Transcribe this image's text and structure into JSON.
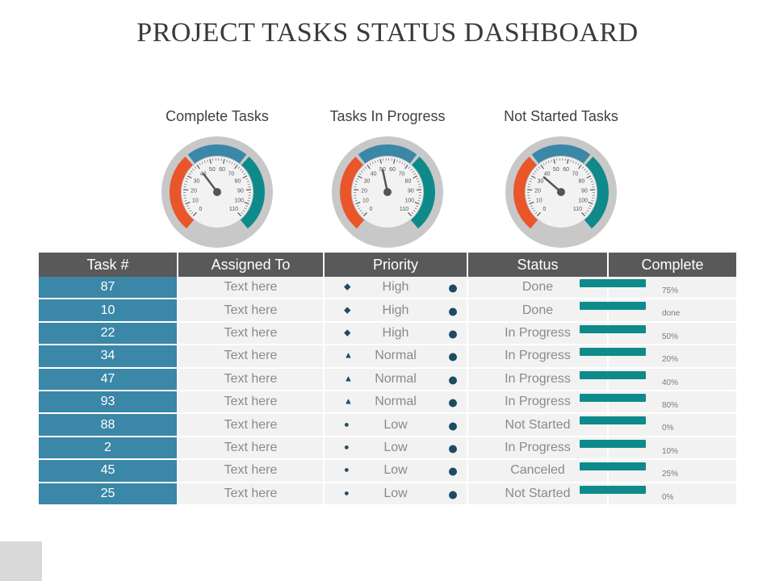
{
  "title": "PROJECT TASKS STATUS DASHBOARD",
  "gauges": [
    {
      "title": "Complete Tasks",
      "ticks": [
        "0",
        "10",
        "20",
        "30",
        "40",
        "50",
        "60",
        "70",
        "80",
        "90",
        "100",
        "110"
      ],
      "needle_value": 40
    },
    {
      "title": "Tasks In Progress",
      "ticks": [
        "0",
        "10",
        "20",
        "30",
        "40",
        "50",
        "60",
        "70",
        "80",
        "90",
        "100",
        "110"
      ],
      "needle_value": 50
    },
    {
      "title": "Not Started Tasks",
      "ticks": [
        "0",
        "10",
        "20",
        "30",
        "40",
        "50",
        "60",
        "70",
        "80",
        "90",
        "100",
        "110"
      ],
      "needle_value": 35
    }
  ],
  "colors": {
    "header": "#595959",
    "task_cell": "#3a87a8",
    "bar": "#0f8a8a",
    "gauge_orange": "#e8562a",
    "gauge_blue": "#3a87a8",
    "gauge_teal": "#0f8a8a"
  },
  "table": {
    "headers": [
      "Task #",
      "Assigned To",
      "Priority",
      "Status",
      "Complete"
    ],
    "rows": [
      {
        "task": "87",
        "assigned": "Text here",
        "priority": "High",
        "priority_icon": "diamond-icon",
        "status": "Done",
        "complete": "75%"
      },
      {
        "task": "10",
        "assigned": "Text here",
        "priority": "High",
        "priority_icon": "diamond-icon",
        "status": "Done",
        "complete": "done"
      },
      {
        "task": "22",
        "assigned": "Text here",
        "priority": "High",
        "priority_icon": "diamond-icon",
        "status": "In Progress",
        "complete": "50%"
      },
      {
        "task": "34",
        "assigned": "Text here",
        "priority": "Normal",
        "priority_icon": "triangle-icon",
        "status": "In Progress",
        "complete": "20%"
      },
      {
        "task": "47",
        "assigned": "Text here",
        "priority": "Normal",
        "priority_icon": "triangle-icon",
        "status": "In Progress",
        "complete": "40%"
      },
      {
        "task": "93",
        "assigned": "Text here",
        "priority": "Normal",
        "priority_icon": "triangle-icon",
        "status": "In Progress",
        "complete": "80%"
      },
      {
        "task": "88",
        "assigned": "Text here",
        "priority": "Low",
        "priority_icon": "circle-icon",
        "status": "Not Started",
        "complete": "0%"
      },
      {
        "task": "2",
        "assigned": "Text here",
        "priority": "Low",
        "priority_icon": "circle-icon",
        "status": "In Progress",
        "complete": "10%"
      },
      {
        "task": "45",
        "assigned": "Text here",
        "priority": "Low",
        "priority_icon": "circle-icon",
        "status": "Canceled",
        "complete": "25%"
      },
      {
        "task": "25",
        "assigned": "Text here",
        "priority": "Low",
        "priority_icon": "circle-icon",
        "status": "Not Started",
        "complete": "0%"
      }
    ]
  }
}
